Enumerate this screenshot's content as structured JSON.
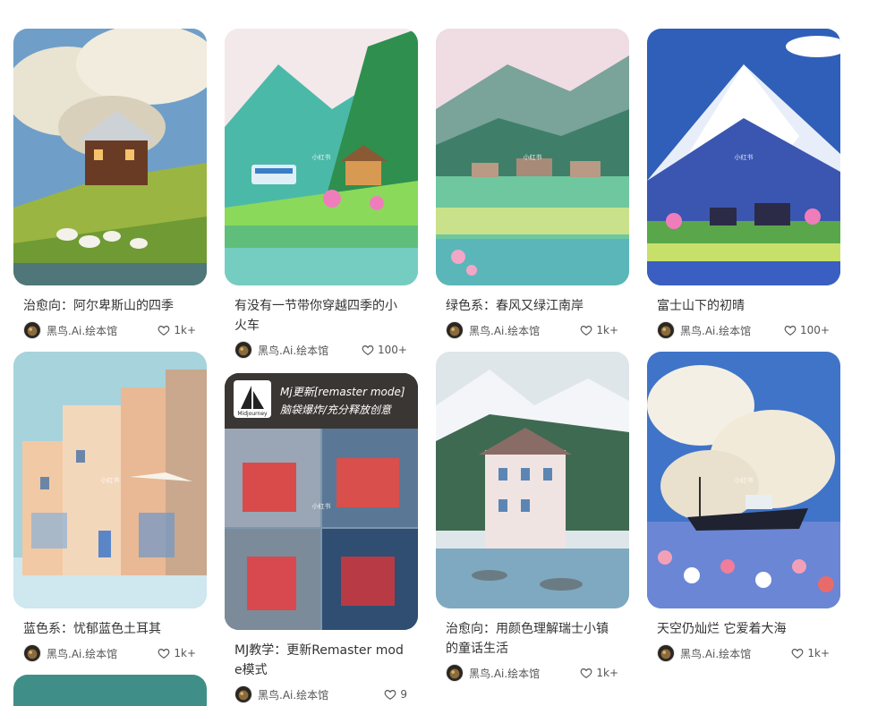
{
  "watermark": "小红书",
  "author": "黑鸟.Ai.绘本馆",
  "cards": [
    {
      "title": "治愈向：阿尔卑斯山的四季",
      "likes": "1k+"
    },
    {
      "title": "有没有一节带你穿越四季的小火车",
      "likes": "100+"
    },
    {
      "title": "绿色系：春风又绿江南岸",
      "likes": "1k+"
    },
    {
      "title": "富士山下的初晴",
      "likes": "100+"
    },
    {
      "title": "蓝色系：忧郁蓝色土耳其",
      "likes": "1k+"
    },
    {
      "title": "MJ教学：更新Remaster mode模式",
      "likes": "9"
    },
    {
      "title": "治愈向：用颜色理解瑞士小镇的童话生活",
      "likes": "1k+"
    },
    {
      "title": "天空仍灿烂 它爱着大海",
      "likes": "1k+"
    }
  ],
  "mj_cover": {
    "logo_text": "Midjourney",
    "line1": "Mj更新[remaster mode]",
    "line2": "脑袋爆炸/充分释放创意"
  }
}
